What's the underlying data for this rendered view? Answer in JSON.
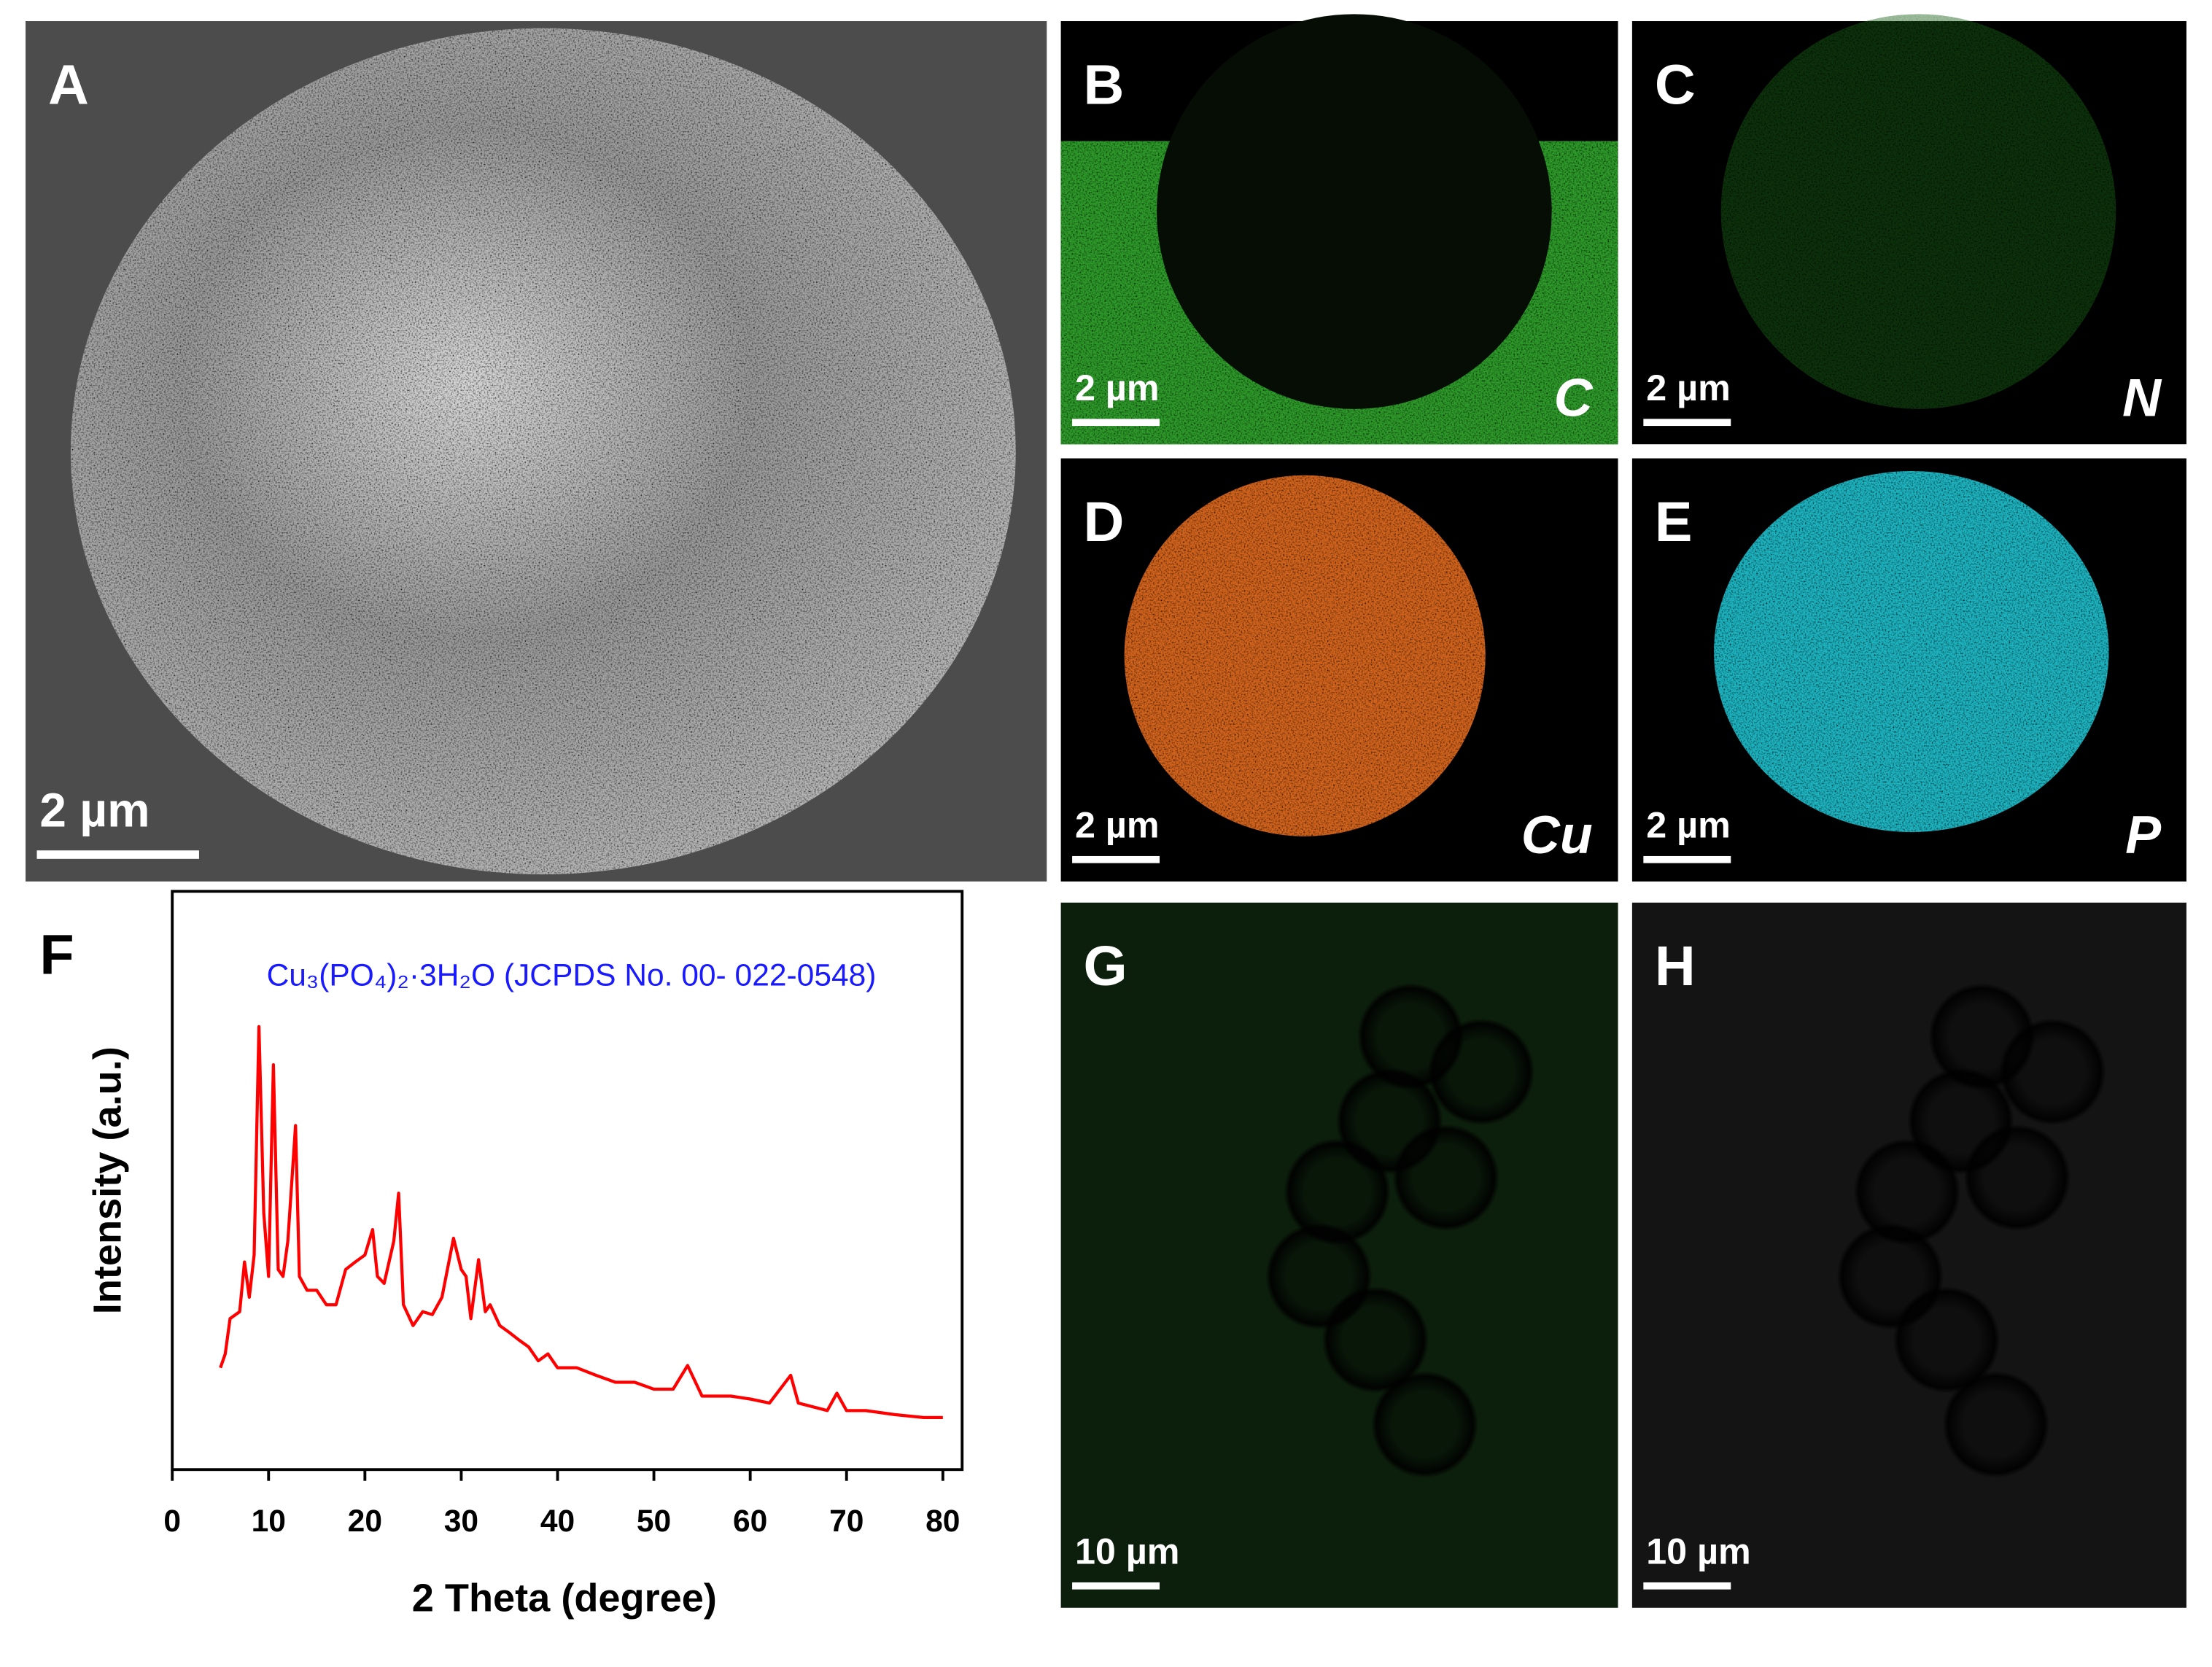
{
  "panels": [
    {
      "label": "A",
      "scale_bar": "2 µm"
    },
    {
      "label": "B",
      "scale_bar": "2 µm",
      "element": "C"
    },
    {
      "label": "C",
      "scale_bar": "2 µm",
      "element": "N"
    },
    {
      "label": "D",
      "scale_bar": "2 µm",
      "element": "Cu"
    },
    {
      "label": "E",
      "scale_bar": "2 µm",
      "element": "P"
    },
    {
      "label": "G",
      "scale_bar": "10 µm"
    },
    {
      "label": "H",
      "scale_bar": "10 µm"
    }
  ],
  "chart_data": {
    "type": "line",
    "label": "F",
    "title": "Cu₃(PO₄)₂·3H₂O (JCPDS No. 00- 022-0548)",
    "x_label": "2 Theta (degree)",
    "y_label": "Intensity (a.u.)",
    "x": [
      5,
      5.5,
      6,
      7,
      7.5,
      8,
      8.5,
      9,
      9.5,
      10,
      10.5,
      11,
      11.5,
      12,
      12.8,
      13.2,
      14,
      15,
      16,
      17,
      18,
      19,
      20,
      20.8,
      21.3,
      22,
      23,
      23.5,
      24,
      25,
      26,
      27,
      28,
      29.2,
      30,
      30.5,
      31,
      31.8,
      32.5,
      33,
      34,
      35,
      36,
      37,
      38,
      39,
      40,
      42,
      44,
      46,
      48,
      50,
      52,
      53.5,
      55,
      58,
      60,
      62,
      64.2,
      65,
      68,
      69,
      70,
      72,
      75,
      78,
      80
    ],
    "values": [
      17.6,
      20.0,
      26.1,
      27.3,
      35.9,
      29.8,
      37.1,
      76.6,
      44.4,
      33.4,
      70.0,
      34.6,
      33.4,
      39.5,
      59.5,
      33.4,
      31.0,
      31.0,
      28.5,
      28.5,
      34.6,
      35.9,
      37.1,
      41.5,
      33.4,
      32.2,
      39.5,
      47.8,
      28.5,
      24.9,
      27.3,
      26.8,
      29.8,
      40.0,
      34.6,
      33.4,
      26.1,
      36.3,
      27.3,
      28.5,
      24.9,
      23.7,
      22.4,
      21.2,
      18.8,
      20.0,
      17.6,
      17.6,
      16.3,
      15.1,
      15.1,
      13.9,
      13.9,
      18.0,
      12.7,
      12.7,
      12.2,
      11.5,
      16.3,
      11.5,
      10.2,
      13.2,
      10.2,
      10.2,
      9.5,
      9.0,
      9.0
    ],
    "color": "#ff0000",
    "xlim": [
      0,
      82
    ],
    "xticks": [
      0,
      10,
      20,
      30,
      40,
      50,
      60,
      70,
      80
    ],
    "ylim": [
      0,
      100
    ]
  }
}
